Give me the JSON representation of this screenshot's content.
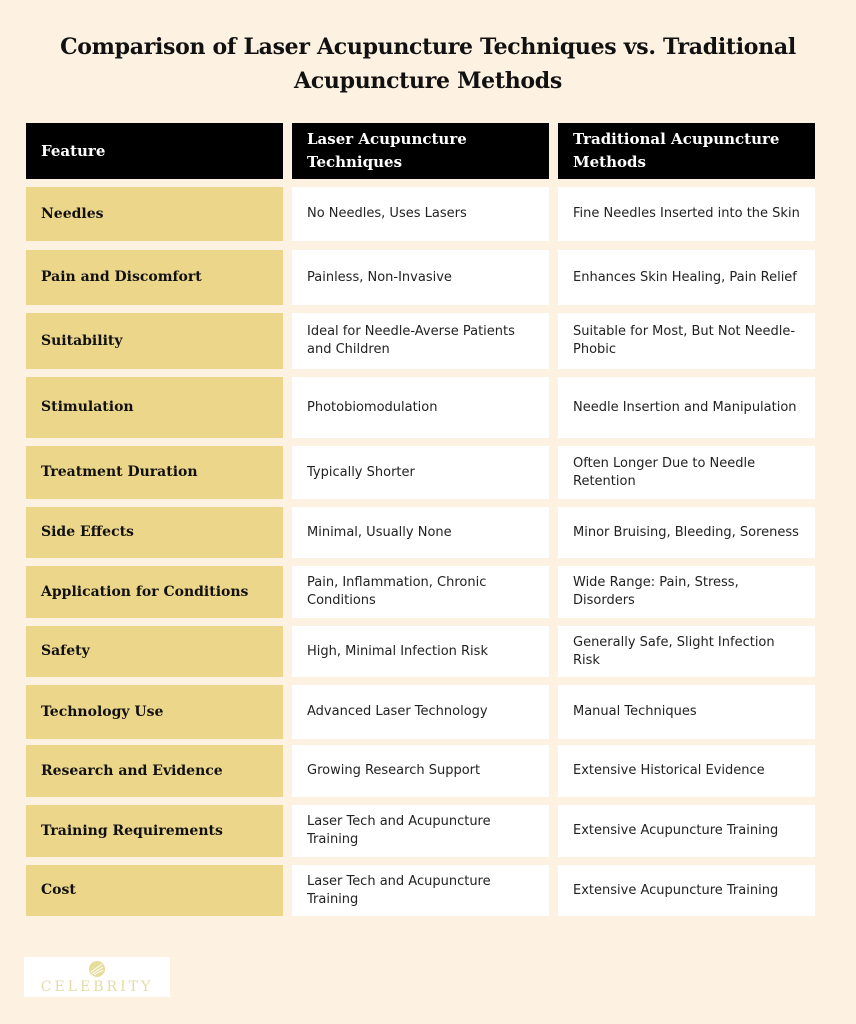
{
  "title": "Comparison of Laser Acupuncture Techniques vs. Traditional Acupuncture Methods",
  "headers": [
    "Feature",
    "Laser Acupuncture Techniques",
    "Traditional Acupuncture Methods"
  ],
  "rows": [
    [
      "Needles",
      "No Needles, Uses Lasers",
      "Fine Needles Inserted into the Skin"
    ],
    [
      "Pain and Discomfort",
      "Painless, Non-Invasive",
      "Enhances Skin Healing, Pain Relief"
    ],
    [
      "Suitability",
      "Ideal for Needle-Averse Patients and Children",
      "Suitable for Most, But Not Needle-Phobic"
    ],
    [
      "Stimulation",
      "Photobiomodulation",
      "Needle Insertion and Manipulation"
    ],
    [
      "Treatment Duration",
      "Typically Shorter",
      "Often Longer Due to Needle Retention"
    ],
    [
      "Side Effects",
      "Minimal, Usually None",
      "Minor Bruising, Bleeding, Soreness"
    ],
    [
      "Application for Conditions",
      "Pain, Inflammation, Chronic Conditions",
      "Wide Range: Pain, Stress, Disorders"
    ],
    [
      "Safety",
      "High, Minimal Infection Risk",
      "Generally Safe, Slight Infection Risk"
    ],
    [
      "Technology Use",
      "Advanced Laser Technology",
      "Manual Techniques"
    ],
    [
      "Research and Evidence",
      "Growing Research Support",
      "Extensive Historical Evidence"
    ],
    [
      "Training Requirements",
      "Laser Tech and Acupuncture Training",
      "Extensive Acupuncture Training"
    ],
    [
      "Cost",
      "Laser Tech and Acupuncture Training",
      "Extensive Acupuncture Training"
    ]
  ],
  "logo": {
    "text": "CELEBRITY",
    "icon": "leaf-ball-icon"
  },
  "colors": {
    "background": "#fdf1e1",
    "header": "#000000",
    "feature": "#ecd68a",
    "cell": "#ffffff"
  }
}
